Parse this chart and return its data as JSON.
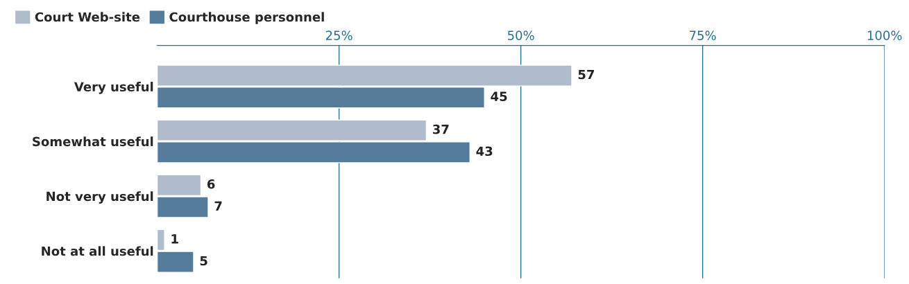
{
  "chart_data": {
    "type": "bar",
    "orientation": "horizontal",
    "categories": [
      "Very useful",
      "Somewhat useful",
      "Not very useful",
      "Not at all useful"
    ],
    "series": [
      {
        "name": "Court Web-site",
        "color": "#b0bbcc",
        "values": [
          57,
          37,
          6,
          1
        ]
      },
      {
        "name": "Courthouse personnel",
        "color": "#557b9b",
        "values": [
          45,
          43,
          7,
          5
        ]
      }
    ],
    "xlim": [
      0,
      100
    ],
    "xticks": [
      {
        "value": 25,
        "label": "25%"
      },
      {
        "value": 50,
        "label": "50%"
      },
      {
        "value": 75,
        "label": "75%"
      },
      {
        "value": 100,
        "label": "100%"
      }
    ],
    "grid": "x",
    "legend": "top left",
    "data_labels": true
  }
}
